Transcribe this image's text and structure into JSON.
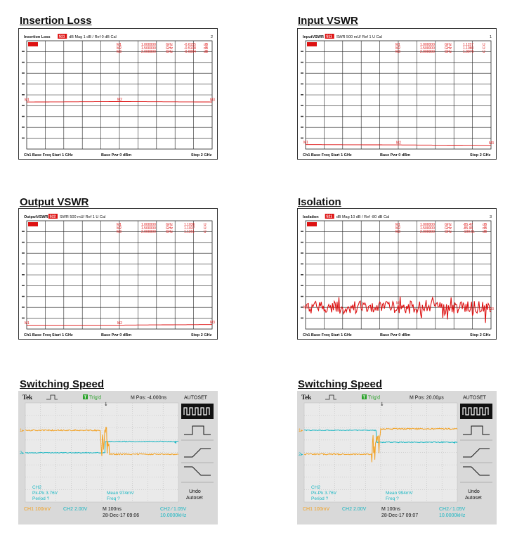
{
  "colors": {
    "vna_trace": "#dd1111",
    "ch1": "#f2a020",
    "ch2": "#17b6c2",
    "scope_bg": "#eaeaea",
    "scope_frame": "#d9d9d9",
    "grid": "#222222"
  },
  "panels": [
    {
      "title": "Insertion Loss",
      "header": {
        "name": "Insertion Loss",
        "badge": "S21",
        "format": "dB Mag",
        "scale": "1 dB /",
        "ref": "Ref 0 dB",
        "cal": "Cal",
        "chan": "2"
      },
      "markers": [
        {
          "id": "M1",
          "freq": "1.000000",
          "unit": "GHz",
          "value": "-0.6155",
          "vunit": "dB"
        },
        {
          "id": "M2",
          "freq": "1.500000",
          "unit": "GHz",
          "value": "-0.5108",
          "vunit": "dB"
        },
        {
          "id": "M3",
          "freq": "2.000000",
          "unit": "GHz",
          "value": "-0.6094",
          "vunit": "dB"
        }
      ],
      "footer": {
        "left": "Ch1  Base Freq  Start  1 GHz",
        "mid": "Base Pwr  0 dBm",
        "right": "Stop  2 GHz"
      }
    },
    {
      "title": "Input VSWR",
      "header": {
        "name": "InputVSWR",
        "badge": "S11",
        "format": "SWR",
        "scale": "500 mU/",
        "ref": "Ref 1 U",
        "cal": "Cal",
        "chan": "1"
      },
      "markers": [
        {
          "id": "M1",
          "freq": "1.000000",
          "unit": "GHz",
          "value": "1.1157",
          "vunit": "U"
        },
        {
          "id": "M2",
          "freq": "1.500000",
          "unit": "GHz",
          "value": "1.1080",
          "vunit": "U"
        },
        {
          "id": "M3",
          "freq": "2.000000",
          "unit": "GHz",
          "value": "1.0979",
          "vunit": "U"
        }
      ],
      "footer": {
        "left": "Ch1  Base Freq  Start  1 GHz",
        "mid": "Base Pwr  0 dBm",
        "right": "Stop  2 GHz"
      }
    },
    {
      "title": "Output VSWR",
      "header": {
        "name": "OutputVSWR",
        "badge": "S22",
        "format": "SWR",
        "scale": "500 mU/",
        "ref": "Ref 1 U",
        "cal": "Cal",
        "chan": ""
      },
      "markers": [
        {
          "id": "M1",
          "freq": "1.000000",
          "unit": "GHz",
          "value": "1.1036",
          "vunit": "U"
        },
        {
          "id": "M2",
          "freq": "1.500000",
          "unit": "GHz",
          "value": "1.1037",
          "vunit": "U"
        },
        {
          "id": "M3",
          "freq": "2.000000",
          "unit": "GHz",
          "value": "1.1161",
          "vunit": "U"
        }
      ],
      "footer": {
        "left": "Ch1  Base Freq  Start  1 GHz",
        "mid": "Base Pwr  0 dBm",
        "right": "Stop  2 GHz"
      }
    },
    {
      "title": "Isolation",
      "header": {
        "name": "Isolation",
        "badge": "S21",
        "format": "dB Mag",
        "scale": "10 dB /",
        "ref": "Ref -80 dB",
        "cal": "Cal",
        "chan": "3"
      },
      "markers": [
        {
          "id": "M1",
          "freq": "1.000000",
          "unit": "GHz",
          "value": "-85.47",
          "vunit": "dB"
        },
        {
          "id": "M2",
          "freq": "1.500000",
          "unit": "GHz",
          "value": "-85.96",
          "vunit": "dB"
        },
        {
          "id": "M3",
          "freq": "2.000000",
          "unit": "GHz",
          "value": "-100.51",
          "vunit": "dB"
        }
      ],
      "footer": {
        "left": "Ch1  Base Freq  Start  1 GHz",
        "mid": "Base Pwr  0 dBm",
        "right": "Stop  2 GHz"
      }
    }
  ],
  "scopes": [
    {
      "title": "Switching Speed",
      "brand": "Tek",
      "trig": "Trig'd",
      "trig_badge": "T",
      "mpos": "M Pos: -4.000ns",
      "autoset": "AUTOSET",
      "ch1_marker": "1",
      "ch2_marker": "2",
      "meas_ch": "CH2",
      "meas1": "Pk-Pk 3.76V",
      "meas2": "Period ?",
      "meas3": "Mean 974mV",
      "meas4": "Freq ?",
      "side_undo": "Undo",
      "side_autoset": "Autoset",
      "bottom_ch1": "CH1  100mV",
      "bottom_ch2": "CH2  2.00V",
      "timebase": "M 100ns",
      "date": "28-Dec-17 09:06",
      "trig_ch": "CH2  ∕  1.05V",
      "trig_freq": "10.0000kHz"
    },
    {
      "title": "Switching Speed",
      "brand": "Tek",
      "trig": "Trig'd",
      "trig_badge": "T",
      "mpos": "M Pos: 20.00μs",
      "autoset": "AUTOSET",
      "ch1_marker": "1",
      "ch2_marker": "2",
      "meas_ch": "CH2",
      "meas1": "Pk-Pk 3.76V",
      "meas2": "Period ?",
      "meas3": "Mean 994mV",
      "meas4": "Freq ?",
      "side_undo": "Undo",
      "side_autoset": "Autoset",
      "bottom_ch1": "CH1  100mV",
      "bottom_ch2": "CH2  2.00V",
      "timebase": "M 100ns",
      "date": "28-Dec-17 09:07",
      "trig_ch": "CH2  ∕  1.05V",
      "trig_freq": "10.0000kHz"
    }
  ],
  "chart_data": [
    {
      "type": "line",
      "title": "Insertion Loss",
      "x": [
        1.0,
        1.5,
        2.0
      ],
      "series": [
        {
          "name": "S21",
          "values": [
            -0.6155,
            -0.5108,
            -0.6094
          ]
        }
      ],
      "xlabel": "",
      "ylabel": ""
    },
    {
      "type": "line",
      "title": "Input VSWR",
      "x": [
        1.0,
        1.5,
        2.0
      ],
      "series": [
        {
          "name": "S11",
          "values": [
            1.1157,
            1.108,
            1.0979
          ]
        }
      ],
      "xlabel": "",
      "ylabel": ""
    },
    {
      "type": "line",
      "title": "Output VSWR",
      "x": [
        1.0,
        1.5,
        2.0
      ],
      "series": [
        {
          "name": "S22",
          "values": [
            1.1036,
            1.1037,
            1.1161
          ]
        }
      ],
      "xlabel": "",
      "ylabel": ""
    },
    {
      "type": "line",
      "title": "Isolation",
      "x": [
        1.0,
        1.5,
        2.0
      ],
      "series": [
        {
          "name": "S21",
          "values": [
            -85.47,
            -85.96,
            -100.51
          ]
        }
      ],
      "xlabel": "",
      "ylabel": ""
    }
  ]
}
